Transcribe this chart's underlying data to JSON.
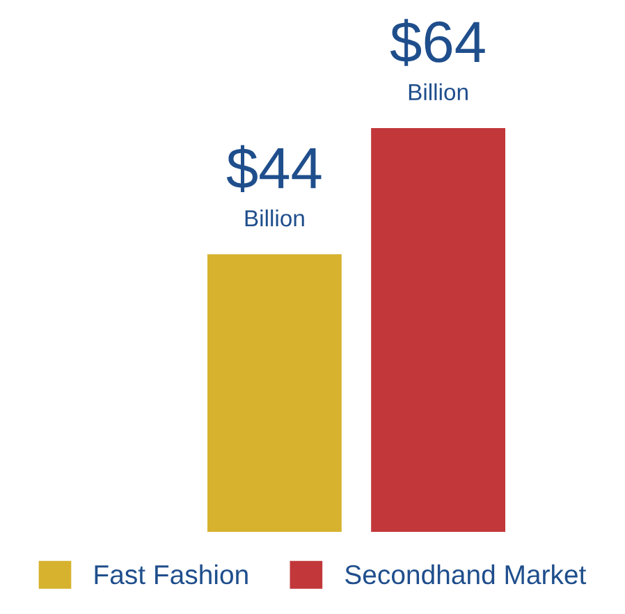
{
  "chart_data": {
    "type": "bar",
    "categories": [
      "Fast Fashion",
      "Secondhand Market"
    ],
    "values": [
      44,
      64
    ],
    "colors": [
      "#d6b22e",
      "#c1373a"
    ],
    "value_labels": [
      "$44\nBillion",
      "$64\nBillion"
    ]
  }
}
